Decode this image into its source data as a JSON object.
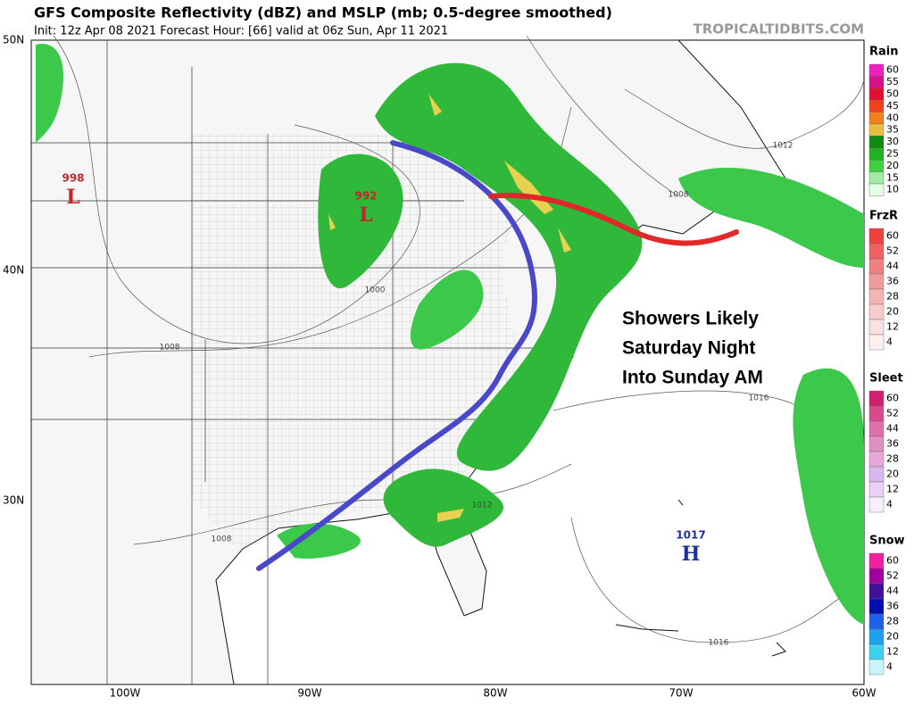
{
  "header": {
    "title": "GFS Composite Reflectivity (dBZ) and MSLP (mb; 0.5-degree smoothed)",
    "subtitle": "Init: 12z Apr 08 2021   Forecast Hour: [66]   valid at 06z Sun, Apr 11 2021",
    "watermark": "TROPICALTIDBITS.COM"
  },
  "map": {
    "lat_labels": [
      "50N",
      "40N",
      "30N"
    ],
    "lon_labels": [
      "100W",
      "90W",
      "80W",
      "70W",
      "60W"
    ],
    "pressure_centers": [
      {
        "value": 998,
        "label": "L"
      },
      {
        "value": 992,
        "label": "L"
      },
      {
        "value": 1017,
        "label": "H"
      }
    ],
    "isobar_labels": [
      1012,
      1008,
      1000,
      1008,
      1016,
      1012,
      1008,
      1016
    ],
    "annotation": [
      "Showers Likely",
      "Saturday Night",
      "Into Sunday AM"
    ]
  },
  "legend": [
    {
      "title": "Rain",
      "levels": [
        60,
        55,
        50,
        45,
        40,
        35,
        30,
        25,
        20,
        15,
        10
      ],
      "colors": [
        "#f020c0",
        "#d8108a",
        "#e01030",
        "#f04020",
        "#f08020",
        "#e8c040",
        "#108a10",
        "#20b020",
        "#40d040",
        "#a0eca0",
        "#e4ffe4"
      ]
    },
    {
      "title": "FrzR",
      "levels": [
        60,
        52,
        44,
        36,
        28,
        20,
        12,
        4
      ],
      "colors": [
        "#f04040",
        "#f06060",
        "#f08080",
        "#f09c9c",
        "#f4b4b4",
        "#f8cccc",
        "#fae0e0",
        "#fff0f0"
      ]
    },
    {
      "title": "Sleet",
      "levels": [
        60,
        52,
        44,
        36,
        28,
        20,
        12,
        4
      ],
      "colors": [
        "#d02070",
        "#d84a8c",
        "#e070a8",
        "#e090c0",
        "#e8a8d8",
        "#d8b8f0",
        "#e8d0f8",
        "#f8eefc"
      ]
    },
    {
      "title": "Snow",
      "levels": [
        60,
        52,
        44,
        36,
        28,
        20,
        12,
        4
      ],
      "colors": [
        "#f020a0",
        "#a000a0",
        "#40109a",
        "#0010b0",
        "#2060e8",
        "#20a0f0",
        "#40d0f0",
        "#c8f4ff"
      ]
    }
  ]
}
